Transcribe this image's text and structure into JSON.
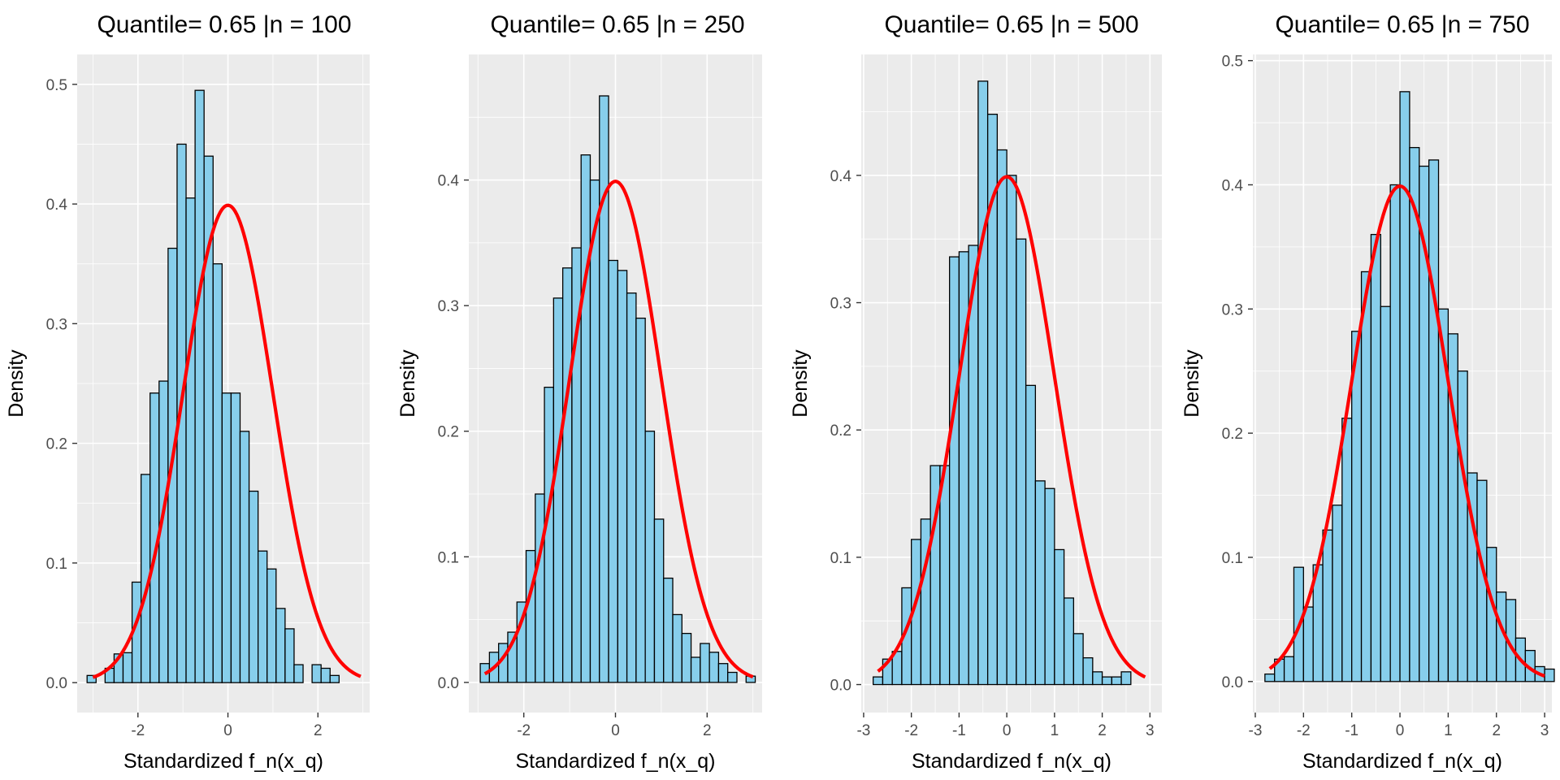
{
  "chart_data": [
    {
      "type": "bar",
      "title": "Quantile= 0.65 |n = 100",
      "xlabel": "Standardized f_n(x_q)",
      "ylabel": "Density",
      "xlim": [
        -3.35,
        3.15
      ],
      "ylim": [
        -0.025,
        0.525
      ],
      "xticks": [
        -2,
        0,
        2
      ],
      "yticks": [
        0.0,
        0.1,
        0.2,
        0.3,
        0.4,
        0.5
      ],
      "bin_start": -3.13,
      "bin_width": 0.2,
      "densities": [
        0.006,
        0.0,
        0.012,
        0.024,
        0.025,
        0.084,
        0.174,
        0.242,
        0.252,
        0.363,
        0.45,
        0.405,
        0.495,
        0.44,
        0.35,
        0.242,
        0.242,
        0.21,
        0.16,
        0.11,
        0.095,
        0.062,
        0.045,
        0.015,
        0.0,
        0.015,
        0.012,
        0.006
      ],
      "normal_curve": {
        "mean": 0,
        "sd": 1,
        "x_range": [
          -3.0,
          2.95
        ]
      }
    },
    {
      "type": "bar",
      "title": "Quantile= 0.65 |n = 250",
      "xlabel": "Standardized f_n(x_q)",
      "ylabel": "Density",
      "xlim": [
        -3.2,
        3.2
      ],
      "ylim": [
        -0.024,
        0.5
      ],
      "xticks": [
        -2,
        0,
        2
      ],
      "yticks": [
        0.0,
        0.1,
        0.2,
        0.3,
        0.4
      ],
      "bin_start": -2.95,
      "bin_width": 0.2,
      "densities": [
        0.015,
        0.024,
        0.031,
        0.04,
        0.064,
        0.105,
        0.15,
        0.235,
        0.306,
        0.33,
        0.346,
        0.42,
        0.4,
        0.467,
        0.336,
        0.328,
        0.31,
        0.29,
        0.2,
        0.13,
        0.083,
        0.054,
        0.039,
        0.02,
        0.031,
        0.024,
        0.015,
        0.008,
        0.0,
        0.005
      ],
      "normal_curve": {
        "mean": 0,
        "sd": 1,
        "x_range": [
          -2.85,
          3.0
        ]
      }
    },
    {
      "type": "bar",
      "title": "Quantile= 0.65 |n = 500",
      "xlabel": "Standardized f_n(x_q)",
      "ylabel": "Density",
      "xlim": [
        -3.05,
        3.25
      ],
      "ylim": [
        -0.022,
        0.495
      ],
      "xticks": [
        -3,
        -2,
        -1,
        0,
        1,
        2,
        3
      ],
      "yticks": [
        0.0,
        0.1,
        0.2,
        0.3,
        0.4
      ],
      "bin_start": -2.8,
      "bin_width": 0.2,
      "densities": [
        0.006,
        0.02,
        0.026,
        0.076,
        0.114,
        0.13,
        0.172,
        0.172,
        0.336,
        0.34,
        0.345,
        0.474,
        0.448,
        0.42,
        0.4,
        0.35,
        0.235,
        0.16,
        0.154,
        0.106,
        0.068,
        0.04,
        0.021,
        0.01,
        0.006,
        0.006,
        0.01
      ],
      "normal_curve": {
        "mean": 0,
        "sd": 1,
        "x_range": [
          -2.7,
          2.9
        ]
      }
    },
    {
      "type": "bar",
      "title": "Quantile= 0.65 |n = 750",
      "xlabel": "Standardized f_n(x_q)",
      "ylabel": "Density",
      "xlim": [
        -3.05,
        3.15
      ],
      "ylim": [
        -0.025,
        0.505
      ],
      "xticks": [
        -3,
        -2,
        -1,
        0,
        1,
        2,
        3
      ],
      "yticks": [
        0.0,
        0.1,
        0.2,
        0.3,
        0.4,
        0.5
      ],
      "bin_start": -2.8,
      "bin_width": 0.2,
      "densities": [
        0.006,
        0.018,
        0.02,
        0.092,
        0.06,
        0.094,
        0.122,
        0.142,
        0.212,
        0.282,
        0.33,
        0.36,
        0.302,
        0.4,
        0.475,
        0.43,
        0.415,
        0.42,
        0.3,
        0.28,
        0.25,
        0.168,
        0.162,
        0.108,
        0.072,
        0.066,
        0.035,
        0.025,
        0.012,
        0.01
      ],
      "normal_curve": {
        "mean": 0,
        "sd": 1,
        "x_range": [
          -2.7,
          3.0
        ]
      }
    }
  ]
}
